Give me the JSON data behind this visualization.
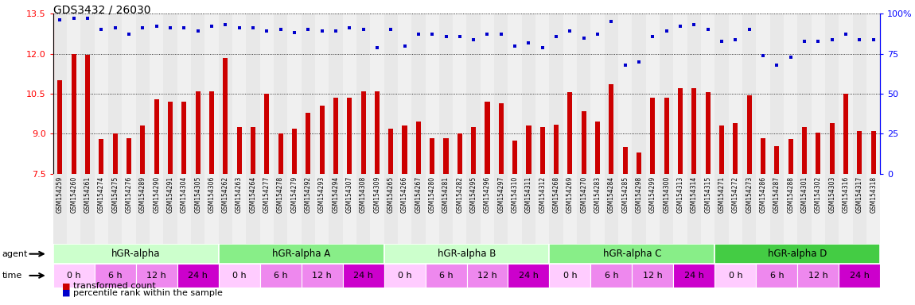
{
  "title": "GDS3432 / 26030",
  "samples": [
    "GSM154259",
    "GSM154260",
    "GSM154261",
    "GSM154274",
    "GSM154275",
    "GSM154276",
    "GSM154289",
    "GSM154290",
    "GSM154291",
    "GSM154304",
    "GSM154305",
    "GSM154306",
    "GSM154262",
    "GSM154263",
    "GSM154264",
    "GSM154277",
    "GSM154278",
    "GSM154279",
    "GSM154292",
    "GSM154293",
    "GSM154294",
    "GSM154307",
    "GSM154308",
    "GSM154309",
    "GSM154265",
    "GSM154266",
    "GSM154267",
    "GSM154280",
    "GSM154281",
    "GSM154282",
    "GSM154295",
    "GSM154296",
    "GSM154297",
    "GSM154310",
    "GSM154311",
    "GSM154312",
    "GSM154268",
    "GSM154269",
    "GSM154270",
    "GSM154283",
    "GSM154284",
    "GSM154285",
    "GSM154298",
    "GSM154299",
    "GSM154300",
    "GSM154313",
    "GSM154314",
    "GSM154315",
    "GSM154271",
    "GSM154272",
    "GSM154273",
    "GSM154286",
    "GSM154287",
    "GSM154288",
    "GSM154301",
    "GSM154302",
    "GSM154303",
    "GSM154316",
    "GSM154317",
    "GSM154318"
  ],
  "bar_values": [
    11.0,
    12.0,
    11.95,
    8.8,
    9.0,
    8.85,
    9.3,
    10.3,
    10.2,
    10.2,
    10.6,
    10.6,
    11.85,
    9.25,
    9.25,
    10.5,
    9.0,
    9.2,
    9.8,
    10.05,
    10.35,
    10.35,
    10.6,
    10.6,
    9.2,
    9.3,
    9.45,
    8.85,
    8.85,
    9.0,
    9.25,
    10.2,
    10.15,
    8.75,
    9.3,
    9.25,
    9.35,
    10.55,
    9.85,
    9.45,
    10.85,
    8.5,
    8.3,
    10.35,
    10.35,
    10.7,
    10.7,
    10.55,
    9.3,
    9.4,
    10.45,
    8.85,
    8.55,
    8.8,
    9.25,
    9.05,
    9.4,
    10.5,
    9.1,
    9.1
  ],
  "percentile_values": [
    96,
    97,
    97,
    90,
    91,
    87,
    91,
    92,
    91,
    91,
    89,
    92,
    93,
    91,
    91,
    89,
    90,
    88,
    90,
    89,
    89,
    91,
    90,
    79,
    90,
    80,
    87,
    87,
    86,
    86,
    84,
    87,
    87,
    80,
    82,
    79,
    86,
    89,
    85,
    87,
    95,
    68,
    70,
    86,
    89,
    92,
    93,
    90,
    83,
    84,
    90,
    74,
    68,
    73,
    83,
    83,
    84,
    87,
    84,
    84
  ],
  "agents": [
    {
      "label": "hGR-alpha",
      "start": 0,
      "end": 12,
      "color": "#ccffcc"
    },
    {
      "label": "hGR-alpha A",
      "start": 12,
      "end": 24,
      "color": "#88ee88"
    },
    {
      "label": "hGR-alpha B",
      "start": 24,
      "end": 36,
      "color": "#ccffcc"
    },
    {
      "label": "hGR-alpha C",
      "start": 36,
      "end": 48,
      "color": "#88ee88"
    },
    {
      "label": "hGR-alpha D",
      "start": 48,
      "end": 60,
      "color": "#44cc44"
    }
  ],
  "time_labels": [
    "0 h",
    "6 h",
    "12 h",
    "24 h"
  ],
  "time_colors": [
    "#ffccff",
    "#ee88ee",
    "#ee88ee",
    "#cc00cc"
  ],
  "ylim_left": [
    7.5,
    13.5
  ],
  "ylim_right": [
    0,
    100
  ],
  "yticks_left": [
    7.5,
    9.0,
    10.5,
    12.0,
    13.5
  ],
  "yticks_right": [
    0,
    25,
    50,
    75,
    100
  ],
  "bar_color": "#cc0000",
  "dot_color": "#0000cc",
  "background_color": "#ffffff"
}
